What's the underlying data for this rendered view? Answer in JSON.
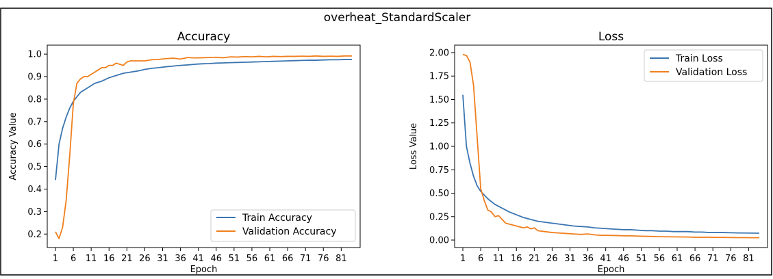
{
  "suptitle": "overheat_StandardScaler",
  "colors": {
    "train": "#3a75b0",
    "validation": "#f07f1d"
  },
  "chart_data": [
    {
      "type": "line",
      "title": "Accuracy",
      "xlabel": "Epoch",
      "ylabel": "Accuracy Value",
      "xlim": [
        -1.3,
        86.3
      ],
      "ylim": [
        0.14,
        1.04
      ],
      "xticks": [
        1,
        6,
        11,
        16,
        21,
        26,
        31,
        36,
        41,
        46,
        51,
        56,
        61,
        66,
        71,
        76,
        81
      ],
      "yticks": [
        0.2,
        0.3,
        0.4,
        0.5,
        0.6,
        0.7,
        0.8,
        0.9,
        1.0
      ],
      "ytick_labels": [
        "0.2",
        "0.3",
        "0.4",
        "0.5",
        "0.6",
        "0.7",
        "0.8",
        "0.9",
        "1.0"
      ],
      "legend": "lower-right",
      "grid": false,
      "series": [
        {
          "name": "Train Accuracy",
          "x": [
            1,
            2,
            3,
            4,
            5,
            6,
            8,
            10,
            12,
            14,
            16,
            18,
            20,
            22,
            24,
            26,
            28,
            30,
            32,
            34,
            36,
            38,
            40,
            42,
            44,
            46,
            48,
            50,
            52,
            54,
            56,
            58,
            60,
            62,
            64,
            66,
            68,
            70,
            72,
            74,
            76,
            78,
            80,
            82,
            84
          ],
          "values": [
            0.44,
            0.6,
            0.67,
            0.72,
            0.76,
            0.79,
            0.83,
            0.85,
            0.87,
            0.88,
            0.895,
            0.905,
            0.915,
            0.92,
            0.925,
            0.932,
            0.937,
            0.94,
            0.944,
            0.947,
            0.95,
            0.952,
            0.955,
            0.957,
            0.958,
            0.96,
            0.961,
            0.962,
            0.963,
            0.964,
            0.965,
            0.966,
            0.967,
            0.968,
            0.969,
            0.97,
            0.971,
            0.972,
            0.973,
            0.973,
            0.974,
            0.975,
            0.975,
            0.976,
            0.976
          ]
        },
        {
          "name": "Validation Accuracy",
          "x": [
            1,
            2,
            3,
            4,
            5,
            6,
            7,
            8,
            9,
            10,
            11,
            12,
            13,
            14,
            15,
            16,
            17,
            18,
            19,
            20,
            21,
            22,
            24,
            26,
            28,
            30,
            32,
            34,
            36,
            38,
            40,
            42,
            44,
            46,
            48,
            50,
            52,
            54,
            56,
            58,
            60,
            62,
            64,
            66,
            68,
            70,
            72,
            74,
            76,
            78,
            80,
            82,
            84
          ],
          "values": [
            0.21,
            0.18,
            0.23,
            0.35,
            0.55,
            0.78,
            0.87,
            0.89,
            0.9,
            0.9,
            0.91,
            0.92,
            0.93,
            0.94,
            0.94,
            0.95,
            0.95,
            0.96,
            0.955,
            0.95,
            0.965,
            0.97,
            0.97,
            0.97,
            0.975,
            0.977,
            0.98,
            0.982,
            0.978,
            0.985,
            0.983,
            0.984,
            0.985,
            0.986,
            0.984,
            0.988,
            0.987,
            0.989,
            0.988,
            0.99,
            0.988,
            0.99,
            0.989,
            0.99,
            0.99,
            0.991,
            0.99,
            0.992,
            0.99,
            0.991,
            0.99,
            0.992,
            0.992
          ]
        }
      ]
    },
    {
      "type": "line",
      "title": "Loss",
      "xlabel": "Epoch",
      "ylabel": "Loss Value",
      "xlim": [
        -1.3,
        86.3
      ],
      "ylim": [
        -0.08,
        2.08
      ],
      "xticks": [
        1,
        6,
        11,
        16,
        21,
        26,
        31,
        36,
        41,
        46,
        51,
        56,
        61,
        66,
        71,
        76,
        81
      ],
      "yticks": [
        0.0,
        0.25,
        0.5,
        0.75,
        1.0,
        1.25,
        1.5,
        1.75,
        2.0
      ],
      "ytick_labels": [
        "0.00",
        "0.25",
        "0.50",
        "0.75",
        "1.00",
        "1.25",
        "1.50",
        "1.75",
        "2.00"
      ],
      "legend": "upper-right",
      "grid": false,
      "series": [
        {
          "name": "Train Loss",
          "x": [
            1,
            2,
            3,
            4,
            5,
            6,
            8,
            10,
            12,
            14,
            16,
            18,
            20,
            22,
            24,
            26,
            28,
            30,
            32,
            34,
            36,
            38,
            40,
            42,
            44,
            46,
            48,
            50,
            52,
            54,
            56,
            58,
            60,
            62,
            64,
            66,
            68,
            70,
            72,
            74,
            76,
            78,
            80,
            82,
            84
          ],
          "values": [
            1.55,
            1.0,
            0.82,
            0.68,
            0.58,
            0.52,
            0.44,
            0.38,
            0.34,
            0.3,
            0.27,
            0.24,
            0.22,
            0.2,
            0.19,
            0.18,
            0.17,
            0.16,
            0.15,
            0.145,
            0.14,
            0.13,
            0.125,
            0.12,
            0.115,
            0.11,
            0.11,
            0.105,
            0.1,
            0.1,
            0.095,
            0.095,
            0.09,
            0.09,
            0.09,
            0.085,
            0.085,
            0.08,
            0.08,
            0.08,
            0.078,
            0.076,
            0.075,
            0.074,
            0.073
          ]
        },
        {
          "name": "Validation Loss",
          "x": [
            1,
            2,
            3,
            4,
            5,
            6,
            7,
            8,
            9,
            10,
            11,
            12,
            13,
            14,
            15,
            16,
            17,
            18,
            19,
            20,
            21,
            22,
            24,
            26,
            28,
            30,
            32,
            34,
            36,
            38,
            40,
            42,
            44,
            46,
            48,
            50,
            52,
            54,
            56,
            58,
            60,
            62,
            64,
            66,
            68,
            70,
            72,
            74,
            76,
            78,
            80,
            82,
            84
          ],
          "values": [
            1.98,
            1.97,
            1.9,
            1.65,
            1.1,
            0.55,
            0.42,
            0.32,
            0.3,
            0.25,
            0.26,
            0.22,
            0.18,
            0.17,
            0.16,
            0.15,
            0.14,
            0.13,
            0.14,
            0.12,
            0.13,
            0.1,
            0.09,
            0.08,
            0.075,
            0.07,
            0.065,
            0.06,
            0.065,
            0.055,
            0.05,
            0.05,
            0.048,
            0.045,
            0.045,
            0.042,
            0.04,
            0.038,
            0.036,
            0.035,
            0.034,
            0.033,
            0.032,
            0.03,
            0.03,
            0.03,
            0.028,
            0.028,
            0.027,
            0.026,
            0.026,
            0.025,
            0.025
          ]
        }
      ]
    }
  ]
}
